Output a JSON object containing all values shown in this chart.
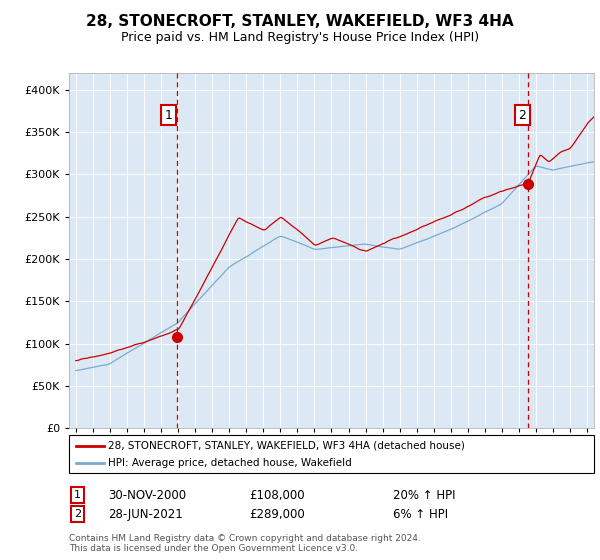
{
  "title": "28, STONECROFT, STANLEY, WAKEFIELD, WF3 4HA",
  "subtitle": "Price paid vs. HM Land Registry's House Price Index (HPI)",
  "legend_line1": "28, STONECROFT, STANLEY, WAKEFIELD, WF3 4HA (detached house)",
  "legend_line2": "HPI: Average price, detached house, Wakefield",
  "annotation1_label": "1",
  "annotation1_date": "30-NOV-2000",
  "annotation1_price": "£108,000",
  "annotation1_hpi": "20% ↑ HPI",
  "annotation2_label": "2",
  "annotation2_date": "28-JUN-2021",
  "annotation2_price": "£289,000",
  "annotation2_hpi": "6% ↑ HPI",
  "footnote": "Contains HM Land Registry data © Crown copyright and database right 2024.\nThis data is licensed under the Open Government Licence v3.0.",
  "house_color": "#cc0000",
  "hpi_color": "#7aaad0",
  "plot_bg": "#dce9f5",
  "marker1_x_year": 2000.92,
  "marker1_y": 108000,
  "marker2_x_year": 2021.5,
  "marker2_y": 289000,
  "ylim": [
    0,
    420000
  ],
  "yticks": [
    0,
    50000,
    100000,
    150000,
    200000,
    250000,
    300000,
    350000,
    400000
  ],
  "xlim_start": 1994.6,
  "xlim_end": 2025.4
}
